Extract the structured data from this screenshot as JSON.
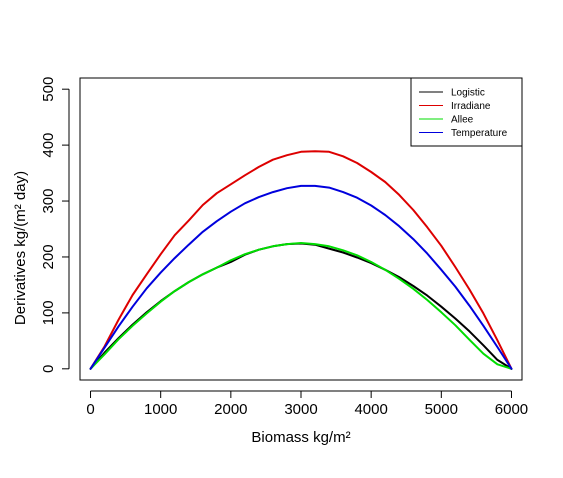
{
  "chart_data": {
    "type": "line",
    "x": [
      0,
      200,
      400,
      600,
      800,
      1000,
      1200,
      1400,
      1600,
      1800,
      2000,
      2200,
      2400,
      2600,
      2800,
      3000,
      3200,
      3400,
      3600,
      3800,
      4000,
      4200,
      4400,
      4600,
      4800,
      5000,
      5200,
      5400,
      5600,
      5800,
      6000
    ],
    "series": [
      {
        "name": "Logistic",
        "color": "#000000",
        "values": [
          0,
          29,
          55,
          79,
          101,
          121,
          139,
          155,
          169,
          181,
          191,
          204,
          213,
          219,
          223,
          224,
          222,
          215,
          208,
          199,
          189,
          177,
          164,
          148,
          131,
          111,
          90,
          67,
          42,
          16,
          0
        ]
      },
      {
        "name": "Irradiane",
        "color": "#dd0000",
        "values": [
          0,
          40,
          88,
          132,
          169,
          205,
          239,
          265,
          293,
          314,
          330,
          346,
          361,
          374,
          382,
          388,
          389,
          388,
          380,
          368,
          352,
          334,
          311,
          284,
          253,
          220,
          182,
          142,
          99,
          51,
          0
        ]
      },
      {
        "name": "Allee",
        "color": "#00dd00",
        "values": [
          0,
          26,
          53,
          77,
          99,
          120,
          139,
          155,
          169,
          181,
          194,
          205,
          213,
          219,
          223,
          225,
          223,
          219,
          212,
          203,
          191,
          177,
          161,
          143,
          123,
          101,
          78,
          52,
          27,
          8,
          0
        ]
      },
      {
        "name": "Temperature",
        "color": "#0000dd",
        "values": [
          0,
          38,
          76,
          111,
          144,
          172,
          198,
          222,
          245,
          264,
          281,
          296,
          307,
          316,
          323,
          327,
          327,
          324,
          316,
          306,
          292,
          275,
          255,
          232,
          206,
          177,
          147,
          113,
          77,
          39,
          0
        ]
      }
    ],
    "xlabel": "Biomass kg/m²",
    "ylabel": "Derivatives kg/(m² day)",
    "xlim": [
      -150,
      6150
    ],
    "ylim": [
      -20,
      520
    ],
    "x_ticks": [
      "0",
      "1000",
      "2000",
      "3000",
      "4000",
      "5000",
      "6000"
    ],
    "y_ticks": [
      "0",
      "100",
      "200",
      "300",
      "400",
      "500"
    ],
    "grid": false,
    "legend_position": "top-right"
  }
}
